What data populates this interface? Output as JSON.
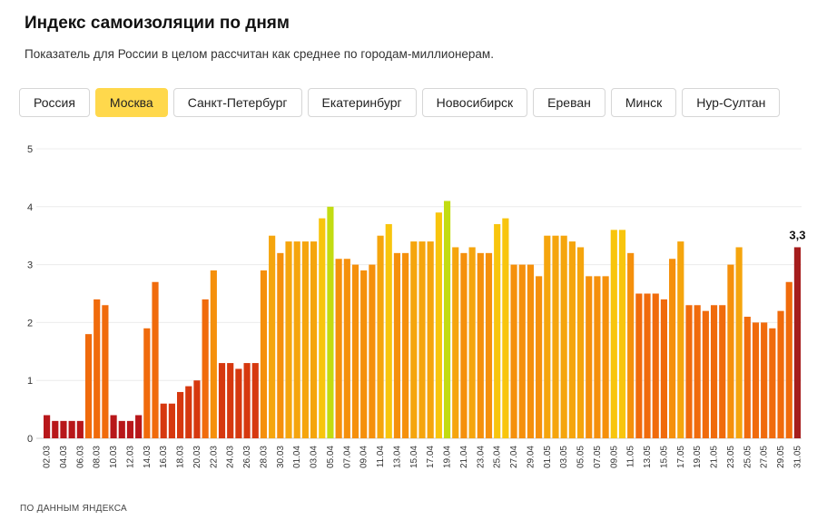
{
  "header": {
    "title": "Индекс самоизоляции по дням",
    "subtitle": "Показатель для России в целом рассчитан как среднее по городам-миллионерам."
  },
  "tabs": [
    {
      "label": "Россия",
      "active": false
    },
    {
      "label": "Москва",
      "active": true
    },
    {
      "label": "Санкт-Петербург",
      "active": false
    },
    {
      "label": "Екатеринбург",
      "active": false
    },
    {
      "label": "Новосибирск",
      "active": false
    },
    {
      "label": "Ереван",
      "active": false
    },
    {
      "label": "Минск",
      "active": false
    },
    {
      "label": "Нур-Султан",
      "active": false
    }
  ],
  "footer": {
    "source": "ПО ДАННЫМ ЯНДЕКСА"
  },
  "colors": {
    "active_tab": "#ffd84c",
    "scale": [
      "#b8171a",
      "#d6380f",
      "#f06b0c",
      "#f5900c",
      "#f5a50d",
      "#f8c50d",
      "#c2dc12"
    ],
    "last_bar": "#a51d1d"
  },
  "chart_data": {
    "type": "bar",
    "title": "",
    "xlabel": "",
    "ylabel": "",
    "ylim": [
      0,
      5
    ],
    "yticks": [
      "0",
      "1",
      "2",
      "3",
      "4",
      "5"
    ],
    "grid": true,
    "last_value_label": "3,3",
    "categories": [
      "02.03",
      "03.03",
      "04.03",
      "05.03",
      "06.03",
      "07.03",
      "08.03",
      "09.03",
      "10.03",
      "11.03",
      "12.03",
      "13.03",
      "14.03",
      "15.03",
      "16.03",
      "17.03",
      "18.03",
      "19.03",
      "20.03",
      "21.03",
      "22.03",
      "23.03",
      "24.03",
      "25.03",
      "26.03",
      "27.03",
      "28.03",
      "29.03",
      "30.03",
      "31.03",
      "01.04",
      "02.04",
      "03.04",
      "04.04",
      "05.04",
      "06.04",
      "07.04",
      "08.04",
      "09.04",
      "10.04",
      "11.04",
      "12.04",
      "13.04",
      "14.04",
      "15.04",
      "16.04",
      "17.04",
      "18.04",
      "19.04",
      "20.04",
      "21.04",
      "22.04",
      "23.04",
      "24.04",
      "25.04",
      "26.04",
      "27.04",
      "28.04",
      "29.04",
      "30.04",
      "01.05",
      "02.05",
      "03.05",
      "04.05",
      "05.05",
      "06.05",
      "07.05",
      "08.05",
      "09.05",
      "10.05",
      "11.05",
      "12.05",
      "13.05",
      "14.05",
      "15.05",
      "16.05",
      "17.05",
      "18.05",
      "19.05",
      "20.05",
      "21.05",
      "22.05",
      "23.05",
      "24.05",
      "25.05",
      "26.05",
      "27.05",
      "28.05",
      "29.05",
      "30.05",
      "31.05"
    ],
    "tick_labels": [
      "02.03",
      "04.03",
      "06.03",
      "08.03",
      "10.03",
      "12.03",
      "14.03",
      "16.03",
      "18.03",
      "20.03",
      "22.03",
      "24.03",
      "26.03",
      "28.03",
      "30.03",
      "01.04",
      "03.04",
      "05.04",
      "07.04",
      "09.04",
      "11.04",
      "13.04",
      "15.04",
      "17.04",
      "19.04",
      "21.04",
      "23.04",
      "25.04",
      "27.04",
      "29.04",
      "01.05",
      "03.05",
      "05.05",
      "07.05",
      "09.05",
      "11.05",
      "13.05",
      "15.05",
      "17.05",
      "19.05",
      "21.05",
      "23.05",
      "25.05",
      "27.05",
      "29.05",
      "31.05"
    ],
    "values": [
      0.4,
      0.3,
      0.3,
      0.3,
      0.3,
      1.8,
      2.4,
      2.3,
      0.4,
      0.3,
      0.3,
      0.4,
      1.9,
      2.7,
      0.6,
      0.6,
      0.8,
      0.9,
      1.0,
      2.4,
      2.9,
      1.3,
      1.3,
      1.2,
      1.3,
      1.3,
      2.9,
      3.5,
      3.2,
      3.4,
      3.4,
      3.4,
      3.4,
      3.8,
      4.0,
      3.1,
      3.1,
      3.0,
      2.9,
      3.0,
      3.5,
      3.7,
      3.2,
      3.2,
      3.4,
      3.4,
      3.4,
      3.9,
      4.1,
      3.3,
      3.2,
      3.3,
      3.2,
      3.2,
      3.7,
      3.8,
      3.0,
      3.0,
      3.0,
      2.8,
      3.5,
      3.5,
      3.5,
      3.4,
      3.3,
      2.8,
      2.8,
      2.8,
      3.6,
      3.6,
      3.2,
      2.5,
      2.5,
      2.5,
      2.4,
      3.1,
      3.4,
      2.3,
      2.3,
      2.2,
      2.3,
      2.3,
      3.0,
      3.3,
      2.1,
      2.0,
      2.0,
      1.9,
      2.2,
      2.7,
      3.3
    ]
  }
}
